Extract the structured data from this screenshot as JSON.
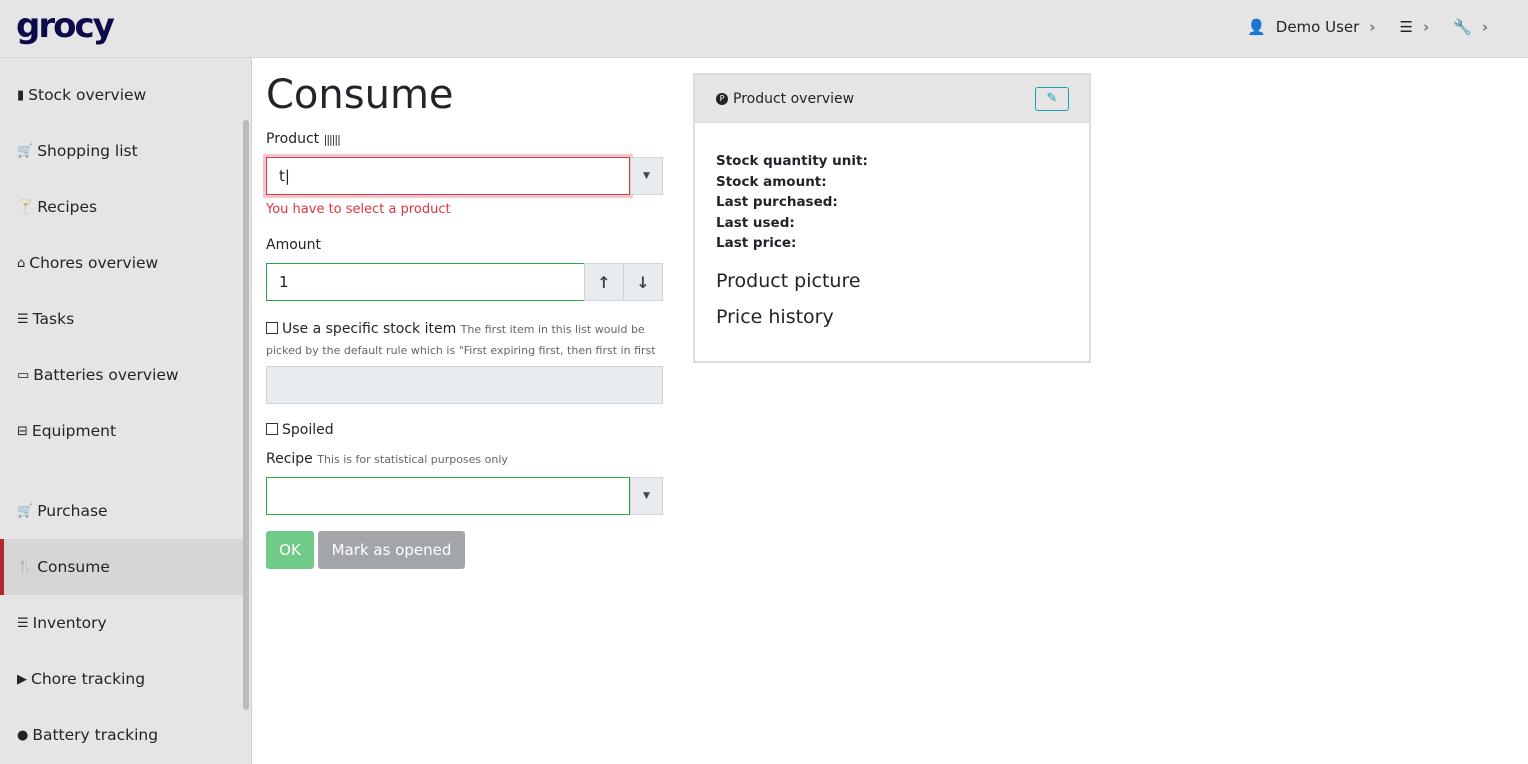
{
  "app": {
    "logo": "grocy"
  },
  "header": {
    "user": "Demo User",
    "chevron": "›"
  },
  "sidebar": {
    "items": [
      {
        "label": "Stock overview",
        "icon": "▮"
      },
      {
        "label": "Shopping list",
        "icon": "🛒"
      },
      {
        "label": "Recipes",
        "icon": "🍸"
      },
      {
        "label": "Chores overview",
        "icon": "⌂"
      },
      {
        "label": "Tasks",
        "icon": "☰"
      },
      {
        "label": "Batteries overview",
        "icon": "▭"
      },
      {
        "label": "Equipment",
        "icon": "⊟"
      },
      {
        "label": "Purchase",
        "icon": "🛒"
      },
      {
        "label": "Consume",
        "icon": "🍴"
      },
      {
        "label": "Inventory",
        "icon": "☰"
      },
      {
        "label": "Chore tracking",
        "icon": "▶"
      },
      {
        "label": "Battery tracking",
        "icon": "●"
      }
    ]
  },
  "main": {
    "title": "Consume",
    "product_label": "Product",
    "product_value": "t",
    "product_error": "You have to select a product",
    "amount_label": "Amount",
    "amount_value": "1",
    "specific_label": "Use a specific stock item",
    "specific_hint": "The first item in this list would be picked by the default rule which is \"First expiring first, then first in first out\"",
    "spoiled_label": "Spoiled",
    "recipe_label": "Recipe",
    "recipe_hint": "This is for statistical purposes only",
    "ok": "OK",
    "mark_opened": "Mark as opened"
  },
  "card": {
    "title": "Product overview",
    "fields": [
      "Stock quantity unit:",
      "Stock amount:",
      "Last purchased:",
      "Last used:",
      "Last price:"
    ],
    "picture": "Product picture",
    "price_history": "Price history"
  },
  "colors": {
    "accent": "#b3262d",
    "ok": "#6fcb87",
    "secondary": "#a2a6ab",
    "error": "#dc3545",
    "valid": "#28a745"
  }
}
